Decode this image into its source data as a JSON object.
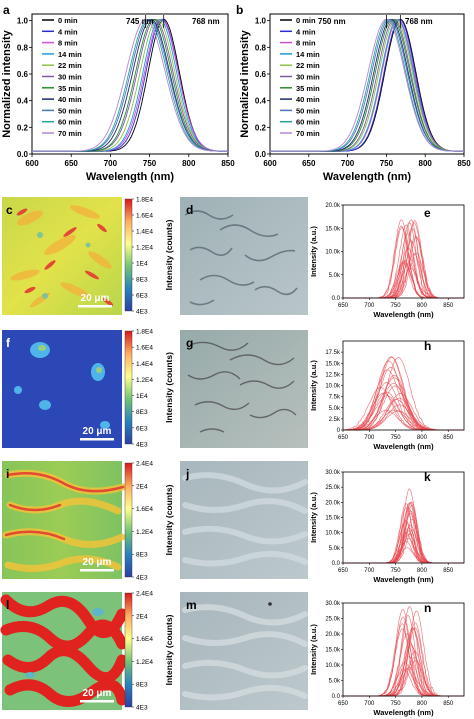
{
  "chart_data": [
    {
      "panel": "a",
      "type": "line",
      "xlabel": "Wavelength (nm)",
      "ylabel": "Normalized intensity",
      "xlim": [
        600,
        850
      ],
      "ylim": [
        0,
        1.05
      ],
      "xticks": [
        600,
        650,
        700,
        750,
        800,
        850
      ],
      "yticks": [
        0.0,
        0.2,
        0.4,
        0.6,
        0.8,
        1.0
      ],
      "annotations": [
        "745 nm",
        "768 nm"
      ],
      "series": [
        {
          "name": "0 min",
          "color": "#000000",
          "peak": 768,
          "width": 28
        },
        {
          "name": "4 min",
          "color": "#2d2dd8",
          "peak": 766,
          "width": 29
        },
        {
          "name": "8 min",
          "color": "#d04fcf",
          "peak": 765,
          "width": 30
        },
        {
          "name": "14 min",
          "color": "#1d9bd6",
          "peak": 763,
          "width": 30
        },
        {
          "name": "22 min",
          "color": "#8fc14a",
          "peak": 760,
          "width": 31
        },
        {
          "name": "30 min",
          "color": "#7b5aa6",
          "peak": 757,
          "width": 32
        },
        {
          "name": "35 min",
          "color": "#2e8b2e",
          "peak": 755,
          "width": 32
        },
        {
          "name": "40 min",
          "color": "#1b2a6b",
          "peak": 752,
          "width": 33
        },
        {
          "name": "50 min",
          "color": "#4a72c4",
          "peak": 750,
          "width": 34
        },
        {
          "name": "60 min",
          "color": "#2aa198",
          "peak": 748,
          "width": 34
        },
        {
          "name": "70 min",
          "color": "#b388d9",
          "peak": 745,
          "width": 35
        }
      ]
    },
    {
      "panel": "b",
      "type": "line",
      "xlabel": "Wavelength (nm)",
      "ylabel": "Normalized intensity",
      "xlim": [
        600,
        850
      ],
      "ylim": [
        0,
        1.05
      ],
      "xticks": [
        600,
        650,
        700,
        750,
        800,
        850
      ],
      "yticks": [
        0.0,
        0.2,
        0.4,
        0.6,
        0.8,
        1.0
      ],
      "annotations": [
        "750 nm",
        "768 nm"
      ],
      "series": [
        {
          "name": "0 min",
          "color": "#000000",
          "peak": 768,
          "width": 28
        },
        {
          "name": "4 min",
          "color": "#2d2dd8",
          "peak": 767,
          "width": 28
        },
        {
          "name": "8 min",
          "color": "#d04fcf",
          "peak": 765,
          "width": 29
        },
        {
          "name": "14 min",
          "color": "#1d9bd6",
          "peak": 764,
          "width": 29
        },
        {
          "name": "22 min",
          "color": "#8fc14a",
          "peak": 762,
          "width": 30
        },
        {
          "name": "30 min",
          "color": "#7b5aa6",
          "peak": 760,
          "width": 30
        },
        {
          "name": "35 min",
          "color": "#2e8b2e",
          "peak": 758,
          "width": 31
        },
        {
          "name": "40 min",
          "color": "#1b2a6b",
          "peak": 756,
          "width": 31
        },
        {
          "name": "50 min",
          "color": "#4a72c4",
          "peak": 754,
          "width": 32
        },
        {
          "name": "60 min",
          "color": "#2aa198",
          "peak": 752,
          "width": 32
        },
        {
          "name": "70 min",
          "color": "#b388d9",
          "peak": 750,
          "width": 33
        }
      ]
    },
    {
      "panel": "c",
      "type": "heatmap",
      "colorbar_label": "Intensity (counts)",
      "colorbar_ticks": [
        "1.8E4",
        "1.6E4",
        "1.4E4",
        "1.2E4",
        "1E4",
        "8E3",
        "6E3",
        "4E3"
      ],
      "scalebar": "20 μm"
    },
    {
      "panel": "f",
      "type": "heatmap",
      "colorbar_label": "Intensity (counts)",
      "colorbar_ticks": [
        "1.8E4",
        "1.6E4",
        "1.4E4",
        "1.2E4",
        "1E4",
        "8E3",
        "6E3",
        "4E3"
      ],
      "scalebar": "20 μm"
    },
    {
      "panel": "i",
      "type": "heatmap",
      "colorbar_label": "Intensity (counts)",
      "colorbar_ticks": [
        "2.4E4",
        "2E4",
        "1.6E4",
        "1.2E4",
        "8E3",
        "4E3"
      ],
      "scalebar": "20 μm"
    },
    {
      "panel": "l",
      "type": "heatmap",
      "colorbar_label": "Intensity (counts)",
      "colorbar_ticks": [
        "2.4E4",
        "2E4",
        "1.6E4",
        "1.2E4",
        "8E3",
        "4E3"
      ],
      "scalebar": "20 μm"
    },
    {
      "panel": "e",
      "type": "line",
      "xlabel": "Wavelength (nm)",
      "ylabel": "Intensity (a.u.)",
      "xlim": [
        650,
        880
      ],
      "ylim": [
        0,
        20000
      ],
      "xticks": [
        650,
        700,
        750,
        800,
        850
      ],
      "ytick_labels": [
        "0.0",
        "5.0k",
        "10.0k",
        "15.0k",
        "20.0k"
      ],
      "ytick_values": [
        0,
        5000,
        10000,
        15000,
        20000
      ],
      "peak_range": [
        760,
        790
      ],
      "max_range": [
        6000,
        18000
      ],
      "width": 17,
      "n_curves": 22
    },
    {
      "panel": "h",
      "type": "line",
      "xlabel": "Wavelength (nm)",
      "ylabel": "Intensity (a.u.)",
      "xlim": [
        650,
        880
      ],
      "ylim": [
        0,
        20000
      ],
      "xticks": [
        650,
        700,
        750,
        800,
        850
      ],
      "ytick_labels": [
        "0",
        "2.5k",
        "5.0k",
        "7.5k",
        "10.0k",
        "12.5k",
        "15.0k",
        "17.5k"
      ],
      "ytick_values": [
        0,
        2500,
        5000,
        7500,
        10000,
        12500,
        15000,
        17500
      ],
      "peak_range": [
        720,
        760
      ],
      "max_range": [
        4000,
        17000
      ],
      "width": 30,
      "n_curves": 22
    },
    {
      "panel": "k",
      "type": "line",
      "xlabel": "Wavelength (nm)",
      "ylabel": "Intensity (a.u.)",
      "xlim": [
        650,
        880
      ],
      "ylim": [
        0,
        30000
      ],
      "xticks": [
        650,
        700,
        750,
        800,
        850
      ],
      "ytick_labels": [
        "0.0",
        "5.0k",
        "10.0k",
        "15.0k",
        "20.0k",
        "25.0k",
        "30.0k"
      ],
      "ytick_values": [
        0,
        5000,
        10000,
        15000,
        20000,
        25000,
        30000
      ],
      "peak_range": [
        768,
        782
      ],
      "max_range": [
        5000,
        25000
      ],
      "width": 15,
      "n_curves": 22
    },
    {
      "panel": "n",
      "type": "line",
      "xlabel": "Wavelength (nm)",
      "ylabel": "Intensity (a.u.)",
      "xlim": [
        650,
        880
      ],
      "ylim": [
        0,
        30000
      ],
      "xticks": [
        650,
        700,
        750,
        800,
        850
      ],
      "ytick_labels": [
        "0.0",
        "5.0k",
        "10.0k",
        "15.0k",
        "20.0k",
        "25.0k",
        "30.0k"
      ],
      "ytick_values": [
        0,
        5000,
        10000,
        15000,
        20000,
        25000,
        30000
      ],
      "peak_range": [
        760,
        790
      ],
      "max_range": [
        8000,
        29000
      ],
      "width": 18,
      "n_curves": 22
    }
  ],
  "panel_letters": [
    "a",
    "b",
    "c",
    "d",
    "e",
    "f",
    "g",
    "h",
    "i",
    "j",
    "k",
    "l",
    "m",
    "n"
  ],
  "colors": {
    "spectra_red": "#e8474f",
    "colorbar": [
      "#d7191c",
      "#fdae61",
      "#ffff8c",
      "#74c476",
      "#2b83ba",
      "#2c3fa3"
    ]
  }
}
